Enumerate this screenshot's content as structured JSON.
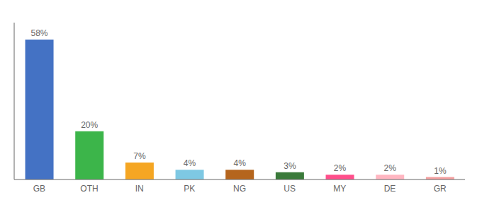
{
  "chart_data": {
    "type": "bar",
    "categories": [
      "GB",
      "OTH",
      "IN",
      "PK",
      "NG",
      "US",
      "MY",
      "DE",
      "GR"
    ],
    "values": [
      58,
      20,
      7,
      4,
      4,
      3,
      2,
      2,
      1
    ],
    "value_labels": [
      "58%",
      "20%",
      "7%",
      "4%",
      "4%",
      "3%",
      "2%",
      "2%",
      "1%"
    ],
    "colors": [
      "#4472C4",
      "#3CB54A",
      "#F5A623",
      "#7EC8E3",
      "#B5651D",
      "#3A7A3A",
      "#FF4F8B",
      "#FFB6C1",
      "#F4A0A0"
    ],
    "ylim": [
      0,
      65
    ],
    "grid": false,
    "data_labels": true,
    "tick_labels": "x"
  }
}
